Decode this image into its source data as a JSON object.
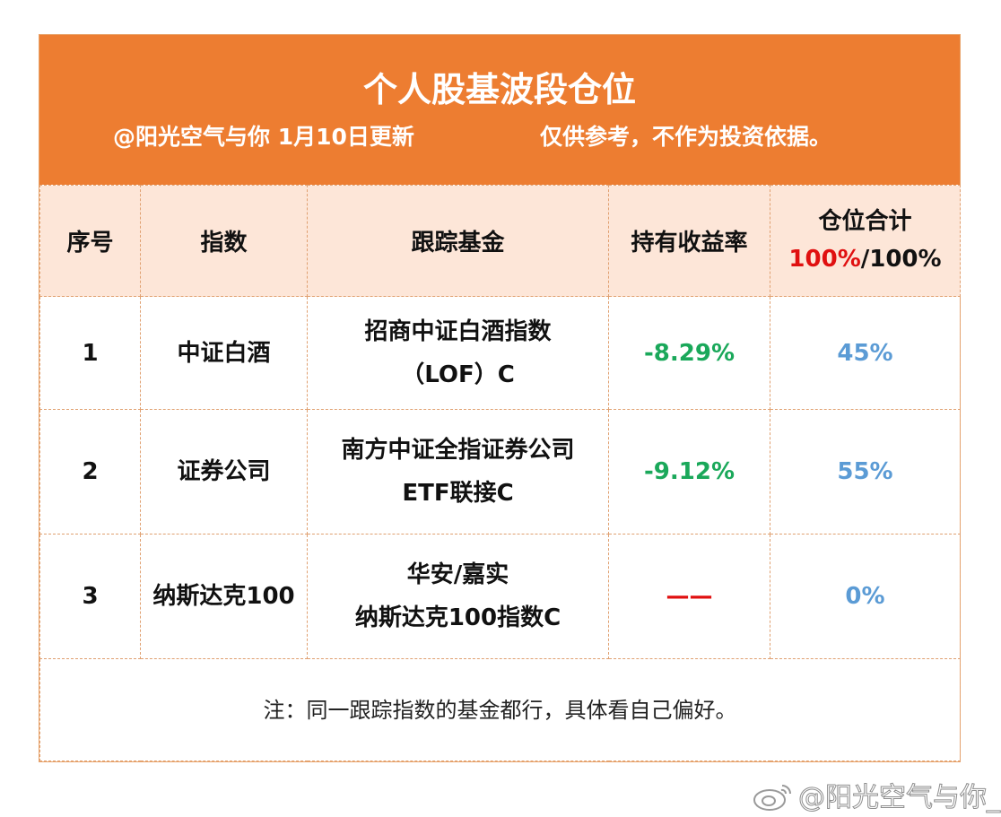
{
  "header": {
    "title": "个人股基波段仓位",
    "subtitle_left": "@阳光空气与你 1月10日更新",
    "subtitle_right": "仅供参考，不作为投资依据。"
  },
  "columns": {
    "seq": "序号",
    "index": "指数",
    "fund": "跟踪基金",
    "return": "持有收益率",
    "position_title": "仓位合计",
    "position_used": "100%",
    "position_sep": "/",
    "position_total": "100%"
  },
  "rows": [
    {
      "seq": "1",
      "index": "中证白酒",
      "fund_line1": "招商中证白酒指数",
      "fund_line2": "（LOF）C",
      "return": "-8.29%",
      "position": "45%"
    },
    {
      "seq": "2",
      "index": "证券公司",
      "fund_line1": "南方中证全指证券公司",
      "fund_line2": "ETF联接C",
      "return": "-9.12%",
      "position": "55%"
    },
    {
      "seq": "3",
      "index": "纳斯达克100",
      "fund_line1": "华安/嘉实",
      "fund_line2": "纳斯达克100指数C",
      "return": "——",
      "position": "0%"
    }
  ],
  "note": "注：同一跟踪指数的基金都行，具体看自己偏好。",
  "watermark": "@阳光空气与你_",
  "colors": {
    "header_bg": "#ed7d31",
    "header_row_bg": "#fde6d8",
    "negative_return": "#1aa85a",
    "position": "#5b9bd5",
    "highlight_red": "#e01010"
  }
}
